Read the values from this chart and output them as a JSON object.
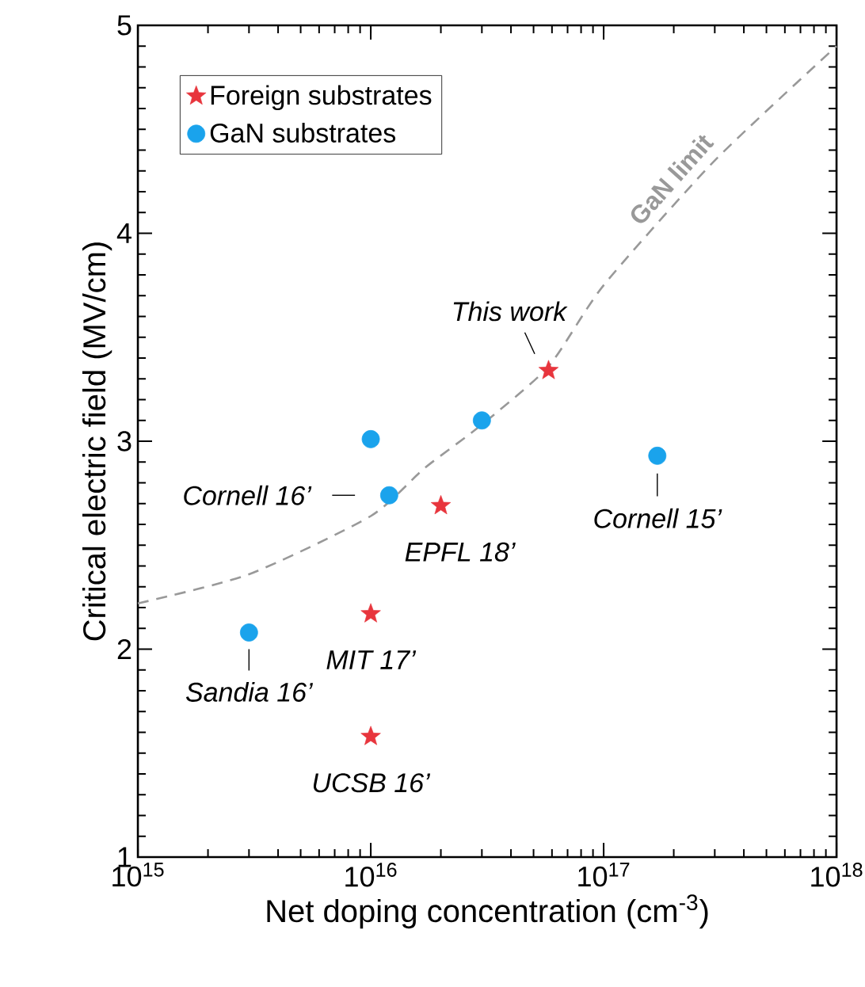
{
  "chart_data": {
    "type": "scatter",
    "xlabel": "Net doping concentration (cm$^{-3}$)",
    "ylabel": "Critical electric field (MV/cm)",
    "log": "x",
    "xlim": [
      1000000000000000.0,
      1e+18
    ],
    "ylim": [
      1,
      5
    ],
    "xticks": [
      {
        "value": 1000000000000000.0,
        "label": "10$^{15}$"
      },
      {
        "value": 1e+16,
        "label": "10$^{16}$"
      },
      {
        "value": 1e+17,
        "label": "10$^{17}$"
      },
      {
        "value": 1e+18,
        "label": "10$^{18}$"
      }
    ],
    "yticks": [
      1,
      2,
      3,
      4,
      5
    ],
    "grid": false,
    "legend": "top left",
    "series": [
      {
        "name": "Foreign substrates",
        "color": "#e8353d",
        "marker": "star",
        "x": [
          5.8e+16,
          2e+16,
          1e+16,
          1e+16
        ],
        "values": [
          3.34,
          2.69,
          2.17,
          1.58
        ]
      },
      {
        "name": "GaN substrates",
        "color": "#1aa3ec",
        "marker": "circle",
        "x": [
          1e+16,
          3e+16,
          1.7e+17,
          1.2e+16,
          3000000000000000.0
        ],
        "values": [
          3.01,
          3.1,
          2.93,
          2.74,
          2.08
        ]
      },
      {
        "name": "GaN limit",
        "type": "line",
        "color": "#999999",
        "line_style": "dashed",
        "marker": "none",
        "x": [
          1000000000000000.0,
          3000000000000000.0,
          1e+16,
          1.7e+16,
          3e+16,
          5.8e+16,
          1e+17,
          3e+17,
          1e+18
        ],
        "values": [
          2.22,
          2.36,
          2.64,
          2.87,
          3.08,
          3.36,
          3.75,
          4.35,
          4.9
        ]
      }
    ],
    "annotations": [
      {
        "text": "This work",
        "x": 5.8e+16,
        "y": 3.34
      },
      {
        "text": "Cornell 16’",
        "x": 1.2e+16,
        "y": 2.74
      },
      {
        "text": "EPFL 18’",
        "x": 2e+16,
        "y": 2.69
      },
      {
        "text": "Cornell 15’",
        "x": 1.7e+17,
        "y": 2.93
      },
      {
        "text": "MIT 17’",
        "x": 1e+16,
        "y": 2.17
      },
      {
        "text": "Sandia 16’",
        "x": 3000000000000000.0,
        "y": 2.08
      },
      {
        "text": "UCSB 16’",
        "x": 1e+16,
        "y": 1.58
      }
    ]
  }
}
